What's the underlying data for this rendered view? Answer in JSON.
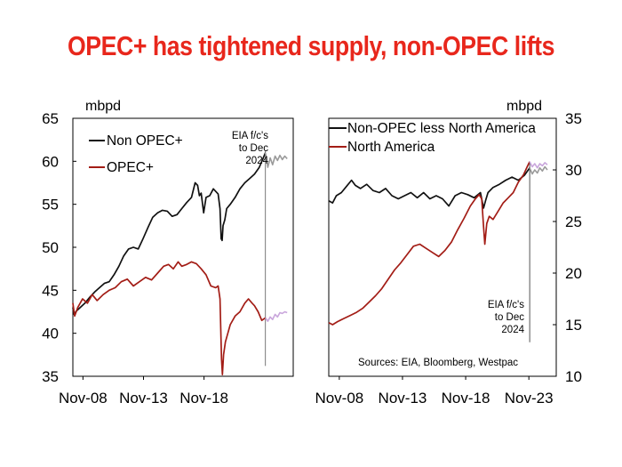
{
  "headline": "OPEC+ has tightened supply, non-OPEC lifts",
  "colors": {
    "title": "#e8271c",
    "black_series": "#111111",
    "red_series": "#a31d16",
    "forecast_black": "#9a9a9a",
    "forecast_red": "#c9a6dc"
  },
  "chart_data": [
    {
      "type": "line",
      "unit_label": "mbpd",
      "axis_side": "left",
      "x_ticks": [
        "Nov-08",
        "Nov-13",
        "Nov-18"
      ],
      "y_ticks": [
        35,
        40,
        45,
        50,
        55,
        60,
        65
      ],
      "xlim": [
        2008.0,
        2026.2
      ],
      "ylim": [
        35,
        65
      ],
      "annotation": [
        "EIA f/c's",
        "to Dec",
        "2024"
      ],
      "forecast_marker_x": 2023.9,
      "legend": "top-left",
      "series": [
        {
          "name": "Non OPEC+",
          "color_key": "black_series",
          "x": [
            2008.0,
            2008.1,
            2008.3,
            2008.6,
            2009.0,
            2009.4,
            2009.8,
            2010.2,
            2010.6,
            2011.0,
            2011.4,
            2011.8,
            2012.2,
            2012.6,
            2013.0,
            2013.4,
            2013.8,
            2014.2,
            2014.6,
            2015.0,
            2015.4,
            2015.8,
            2016.2,
            2016.6,
            2017.0,
            2017.4,
            2017.8,
            2018.1,
            2018.3,
            2018.45,
            2018.6,
            2018.8,
            2019.0,
            2019.3,
            2019.6,
            2019.8,
            2020.0,
            2020.15,
            2020.25,
            2020.33,
            2020.4,
            2020.55,
            2020.7,
            2021.0,
            2021.4,
            2021.8,
            2022.2,
            2022.6,
            2023.0,
            2023.4,
            2023.7,
            2023.9
          ],
          "y": [
            43.0,
            42.2,
            42.6,
            43.0,
            43.5,
            44.2,
            44.8,
            45.3,
            45.8,
            46.0,
            46.8,
            47.8,
            49.0,
            49.8,
            50.0,
            49.8,
            51.0,
            52.3,
            53.5,
            54.0,
            54.3,
            54.2,
            53.6,
            53.8,
            54.5,
            55.2,
            55.8,
            57.5,
            57.2,
            56.0,
            56.3,
            54.0,
            55.8,
            56.0,
            56.8,
            56.5,
            56.2,
            54.5,
            51.0,
            50.8,
            52.5,
            53.2,
            54.5,
            55.0,
            55.8,
            56.8,
            57.5,
            58.0,
            58.5,
            59.3,
            60.3,
            61.0
          ]
        },
        {
          "name": "OPEC+",
          "color_key": "red_series",
          "x": [
            2008.0,
            2008.15,
            2008.4,
            2008.8,
            2009.2,
            2009.6,
            2010.0,
            2010.5,
            2011.0,
            2011.5,
            2012.0,
            2012.5,
            2013.0,
            2013.5,
            2014.0,
            2014.5,
            2015.0,
            2015.5,
            2015.9,
            2016.3,
            2016.7,
            2017.0,
            2017.4,
            2017.8,
            2018.2,
            2018.6,
            2019.0,
            2019.4,
            2019.8,
            2020.0,
            2020.15,
            2020.28,
            2020.35,
            2020.45,
            2020.6,
            2020.8,
            2021.0,
            2021.4,
            2021.8,
            2022.2,
            2022.5,
            2022.8,
            2023.0,
            2023.3,
            2023.6,
            2023.9
          ],
          "y": [
            43.5,
            42.0,
            43.0,
            44.0,
            43.5,
            44.5,
            43.8,
            44.5,
            45.0,
            45.3,
            46.0,
            46.3,
            45.5,
            46.0,
            46.5,
            46.2,
            47.0,
            47.8,
            48.0,
            47.5,
            48.3,
            47.8,
            48.0,
            48.3,
            48.1,
            47.5,
            46.8,
            45.5,
            45.3,
            45.5,
            44.0,
            37.0,
            35.2,
            37.5,
            39.0,
            40.0,
            41.0,
            42.0,
            42.5,
            43.5,
            44.0,
            43.5,
            43.2,
            42.5,
            41.5,
            41.8
          ]
        },
        {
          "name": "",
          "color_key": "forecast_black",
          "x": [
            2023.9,
            2024.1,
            2024.3,
            2024.5,
            2024.7,
            2024.9,
            2025.1,
            2025.3,
            2025.5,
            2025.7
          ],
          "y": [
            61.0,
            59.3,
            60.4,
            59.6,
            60.6,
            60.1,
            60.7,
            60.2,
            60.6,
            60.3
          ]
        },
        {
          "name": "",
          "color_key": "forecast_red",
          "x": [
            2023.9,
            2024.1,
            2024.3,
            2024.5,
            2024.7,
            2024.9,
            2025.1,
            2025.3,
            2025.5,
            2025.7
          ],
          "y": [
            41.8,
            41.4,
            41.9,
            41.6,
            42.2,
            41.9,
            42.4,
            42.3,
            42.5,
            42.4
          ]
        }
      ]
    },
    {
      "type": "line",
      "unit_label": "mbpd",
      "axis_side": "right",
      "x_ticks": [
        "Nov-08",
        "Nov-13",
        "Nov-18",
        "Nov-23"
      ],
      "y_ticks": [
        10,
        15,
        20,
        25,
        30,
        35
      ],
      "xlim": [
        2008.0,
        2026.0
      ],
      "ylim": [
        10,
        35
      ],
      "annotation": [
        "EIA f/c's",
        "to Dec",
        "2024"
      ],
      "source": "Sources: EIA, Bloomberg, Westpac",
      "forecast_marker_x": 2023.9,
      "legend": "top-left",
      "series": [
        {
          "name": "Non-OPEC less North America",
          "color_key": "black_series",
          "x": [
            2008.0,
            2008.3,
            2008.6,
            2009.0,
            2009.4,
            2009.8,
            2010.1,
            2010.5,
            2011.0,
            2011.5,
            2012.0,
            2012.5,
            2013.0,
            2013.5,
            2014.0,
            2014.5,
            2015.0,
            2015.5,
            2016.0,
            2016.5,
            2017.0,
            2017.5,
            2018.0,
            2018.5,
            2019.0,
            2019.5,
            2020.0,
            2020.25,
            2020.4,
            2020.6,
            2021.0,
            2021.5,
            2022.0,
            2022.5,
            2023.0,
            2023.5,
            2023.9
          ],
          "y": [
            27.0,
            26.8,
            27.5,
            27.8,
            28.4,
            29.0,
            28.5,
            28.2,
            28.6,
            28.0,
            27.8,
            28.2,
            27.5,
            27.2,
            27.5,
            27.8,
            27.3,
            27.8,
            27.2,
            27.5,
            27.2,
            26.5,
            27.5,
            27.8,
            27.6,
            27.3,
            27.8,
            26.3,
            27.0,
            27.8,
            28.3,
            28.6,
            29.0,
            29.3,
            29.0,
            29.5,
            30.2
          ]
        },
        {
          "name": "North America",
          "color_key": "red_series",
          "x": [
            2008.0,
            2008.3,
            2008.7,
            2009.2,
            2009.7,
            2010.2,
            2010.7,
            2011.2,
            2011.7,
            2012.2,
            2012.7,
            2013.2,
            2013.7,
            2014.2,
            2014.7,
            2015.2,
            2015.7,
            2016.2,
            2016.7,
            2017.2,
            2017.7,
            2018.2,
            2018.7,
            2019.2,
            2019.6,
            2019.9,
            2020.1,
            2020.25,
            2020.35,
            2020.5,
            2020.7,
            2021.0,
            2021.4,
            2021.8,
            2022.2,
            2022.6,
            2023.0,
            2023.4,
            2023.7,
            2023.9
          ],
          "y": [
            15.2,
            15.0,
            15.3,
            15.6,
            15.9,
            16.2,
            16.6,
            17.2,
            17.8,
            18.5,
            19.4,
            20.3,
            21.0,
            21.8,
            22.6,
            22.8,
            22.4,
            22.0,
            21.6,
            22.2,
            23.0,
            24.2,
            25.3,
            26.5,
            27.2,
            27.6,
            27.2,
            24.5,
            22.8,
            24.8,
            25.5,
            25.2,
            26.0,
            26.8,
            27.3,
            27.8,
            28.8,
            29.5,
            30.3,
            30.8
          ]
        },
        {
          "name": "",
          "color_key": "forecast_black",
          "x": [
            2023.9,
            2024.1,
            2024.3,
            2024.5,
            2024.7,
            2024.9,
            2025.1,
            2025.3
          ],
          "y": [
            30.2,
            29.6,
            30.0,
            29.7,
            30.2,
            29.9,
            30.3,
            30.0
          ]
        },
        {
          "name": "",
          "color_key": "forecast_red",
          "x": [
            2023.9,
            2024.1,
            2024.3,
            2024.5,
            2024.7,
            2024.9,
            2025.1,
            2025.3
          ],
          "y": [
            30.8,
            30.3,
            30.6,
            30.2,
            30.6,
            30.4,
            30.7,
            30.5
          ]
        }
      ]
    }
  ]
}
